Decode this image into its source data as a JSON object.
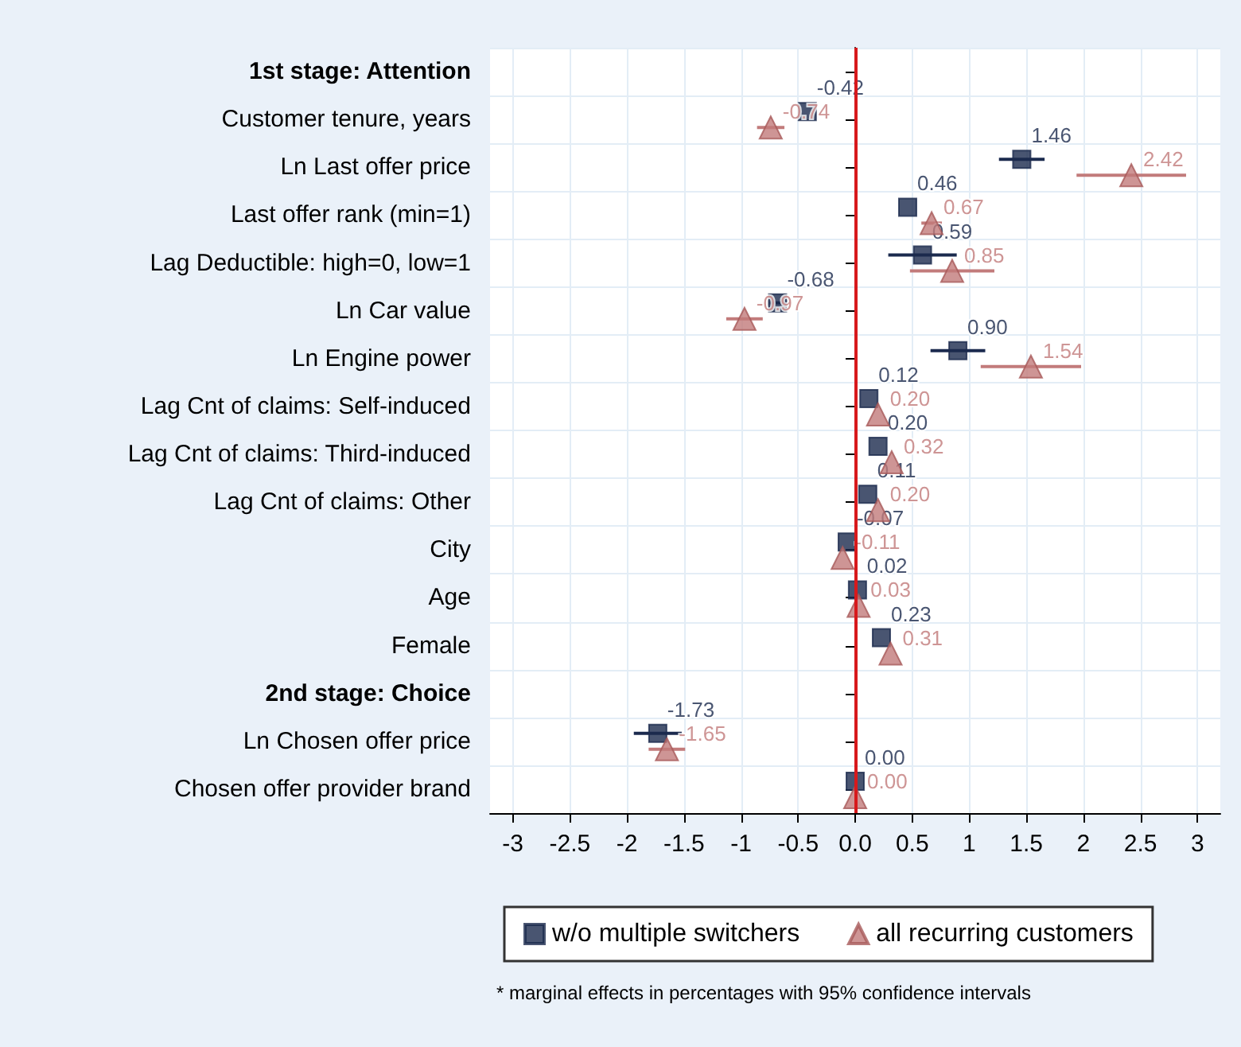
{
  "chart_data": {
    "type": "scatter",
    "orientation": "horizontal",
    "categories": [
      "1st stage: Attention",
      "Customer tenure, years",
      "Ln Last offer price",
      "Last offer rank (min=1)",
      "Lag Deductible: high=0, low=1",
      "Ln Car value",
      "Ln Engine power",
      "Lag Cnt of claims: Self-induced",
      "Lag Cnt of claims: Third-induced",
      "Lag Cnt of claims: Other",
      "City",
      "Age",
      "Female",
      "2nd stage: Choice",
      "Ln Chosen offer price",
      "Chosen offer provider brand"
    ],
    "series": [
      {
        "name": "w/o multiple switchers",
        "color": "#1b2a4e",
        "marker": "square",
        "values": [
          null,
          -0.42,
          1.46,
          0.46,
          0.59,
          -0.68,
          0.9,
          0.12,
          0.2,
          0.11,
          -0.07,
          0.02,
          0.23,
          null,
          -1.73,
          0.0
        ],
        "errors": [
          null,
          null,
          0.2,
          null,
          0.3,
          0.07,
          0.24,
          null,
          null,
          null,
          null,
          null,
          null,
          null,
          0.21,
          null
        ],
        "value_labels": [
          null,
          "-0.42",
          "1.46",
          "0.46",
          "0.59",
          "-0.68",
          "0.90",
          "0.12",
          "0.20",
          "0.11",
          "-0.07",
          "0.02",
          "0.23",
          null,
          "-1.73",
          "0.00"
        ]
      },
      {
        "name": "all recurring customers",
        "color": "#c27b7b",
        "marker": "triangle",
        "values": [
          null,
          -0.74,
          2.42,
          0.67,
          0.85,
          -0.97,
          1.54,
          0.2,
          0.32,
          0.2,
          -0.11,
          0.03,
          0.31,
          null,
          -1.65,
          0.0
        ],
        "errors": [
          null,
          0.12,
          0.48,
          0.09,
          0.37,
          0.16,
          0.44,
          null,
          null,
          null,
          null,
          null,
          null,
          null,
          0.16,
          null
        ],
        "value_labels": [
          null,
          "-0.74",
          "2.42",
          "0.67",
          "0.85",
          "-0.97",
          "1.54",
          "0.20",
          "0.32",
          "0.20",
          "-0.11",
          "0.03",
          "0.31",
          null,
          "-1.65",
          "0.00"
        ]
      }
    ],
    "xlim": [
      -3.2,
      3.2
    ],
    "xticks": [
      -3,
      "-2.5",
      -2,
      -1.5,
      -1,
      -0.5,
      {
        "value": 0,
        "label": "0.0"
      },
      0.5,
      1,
      1.5,
      2,
      2.5,
      3
    ],
    "ref_lines": [
      {
        "axis": "x",
        "value": 0,
        "color": "#d7191c"
      }
    ],
    "grid": true,
    "legend": "bottom",
    "annotations": [
      "* marginal effects in percentages with 95% confidence intervals"
    ]
  }
}
